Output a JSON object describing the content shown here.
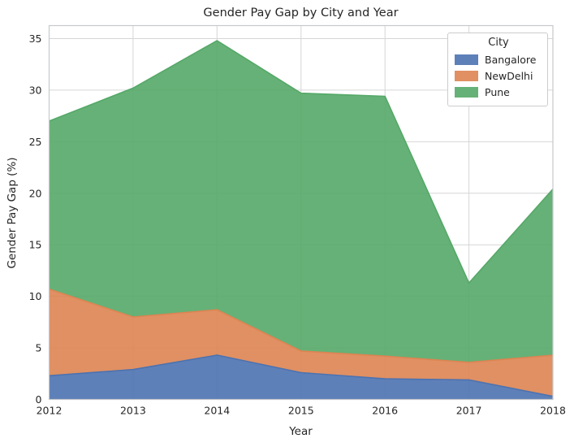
{
  "chart_data": {
    "type": "area",
    "stacked": true,
    "title": "Gender Pay Gap by City and Year",
    "xlabel": "Year",
    "ylabel": "Gender Pay Gap (%)",
    "x": [
      2012,
      2013,
      2014,
      2015,
      2016,
      2017,
      2018
    ],
    "x_tick_labels": [
      "2012",
      "2013",
      "2014",
      "2015",
      "2016",
      "2017",
      "2018"
    ],
    "y_ticks": [
      0,
      5,
      10,
      15,
      20,
      25,
      30,
      35
    ],
    "xlim": [
      2012,
      2018
    ],
    "ylim": [
      0,
      36.3
    ],
    "grid": true,
    "legend": {
      "title": "City",
      "position": "upper right"
    },
    "series": [
      {
        "name": "Bangalore",
        "color": "#4C72B0",
        "values": [
          2.3,
          2.9,
          4.3,
          2.6,
          2.0,
          1.9,
          0.3
        ]
      },
      {
        "name": "NewDelhi",
        "color": "#DD8452",
        "values": [
          8.4,
          5.1,
          4.4,
          2.1,
          2.2,
          1.7,
          4.0
        ]
      },
      {
        "name": "Pune",
        "color": "#55A868",
        "values": [
          16.3,
          22.2,
          26.1,
          25.0,
          25.2,
          7.7,
          16.1
        ]
      }
    ],
    "stacked_totals": [
      27.0,
      30.2,
      34.8,
      29.7,
      29.4,
      11.3,
      20.4
    ],
    "style": {
      "grid_color": "#d6d6d6",
      "frame_color": "#c6c9cc",
      "fill_opacity": 0.9,
      "text_color": "#262626",
      "background": "#ffffff"
    }
  }
}
